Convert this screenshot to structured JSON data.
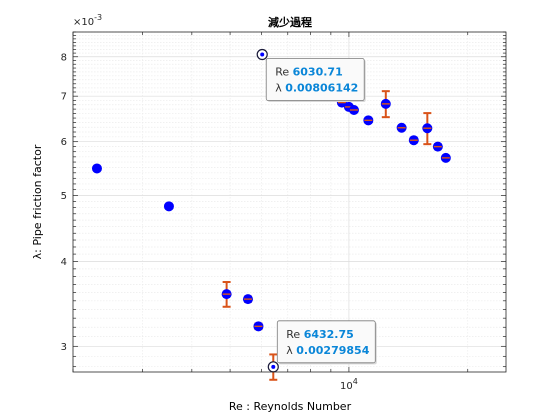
{
  "chart_data": {
    "type": "scatter",
    "title": "減少過程",
    "xlabel": "Re : Reynolds Number",
    "ylabel": "λ: Pipe friction factor",
    "x_scale": "log",
    "y_scale": "log",
    "xlim": [
      2000,
      25000
    ],
    "ylim": [
      0.00275,
      0.0087
    ],
    "y_exponent_label": "×10",
    "y_exponent_power": "-3",
    "x_tick_labels": [
      {
        "value": 10000,
        "base": "10",
        "power": "4"
      }
    ],
    "y_tick_labels": [
      {
        "value": 0.003,
        "label": "3"
      },
      {
        "value": 0.004,
        "label": "4"
      },
      {
        "value": 0.005,
        "label": "5"
      },
      {
        "value": 0.006,
        "label": "6"
      },
      {
        "value": 0.007,
        "label": "7"
      },
      {
        "value": 0.008,
        "label": "8"
      }
    ],
    "grid": true,
    "marker_color": "#0000ff",
    "errorbar_color": "#d95319",
    "series": [
      {
        "points": [
          {
            "x": 2300,
            "y": 0.00548
          },
          {
            "x": 3500,
            "y": 0.00482
          },
          {
            "x": 4900,
            "y": 0.00358,
            "err": 0.00015
          },
          {
            "x": 5550,
            "y": 0.00352,
            "err": 3e-05
          },
          {
            "x": 5900,
            "y": 0.00321,
            "err": 3e-05
          },
          {
            "x": 6030.71,
            "y": 0.00806142,
            "err": 3e-05
          },
          {
            "x": 6432.75,
            "y": 0.00279854,
            "err": 0.00012
          },
          {
            "x": 8700,
            "y": 0.00698,
            "err": 3e-05
          },
          {
            "x": 9600,
            "y": 0.00685,
            "err": 3e-05
          },
          {
            "x": 10000,
            "y": 0.00675,
            "err": 3e-05
          },
          {
            "x": 10300,
            "y": 0.00668,
            "err": 3e-05
          },
          {
            "x": 11200,
            "y": 0.00645,
            "err": 3e-05
          },
          {
            "x": 12400,
            "y": 0.00682,
            "err": 0.0003
          },
          {
            "x": 13600,
            "y": 0.00629,
            "err": 3e-05
          },
          {
            "x": 14600,
            "y": 0.00603,
            "err": 3e-05
          },
          {
            "x": 15800,
            "y": 0.00628,
            "err": 0.00033
          },
          {
            "x": 16800,
            "y": 0.0059,
            "err": 3e-05
          },
          {
            "x": 17600,
            "y": 0.00568,
            "err": 3e-05
          }
        ]
      }
    ],
    "datatips": [
      {
        "x": 6030.71,
        "y": 0.00806142,
        "x_label": "Re",
        "y_label": "λ",
        "x_text": "6030.71",
        "y_text": "0.00806142",
        "placement": "lower-right"
      },
      {
        "x": 6432.75,
        "y": 0.00279854,
        "x_label": "Re",
        "y_label": "λ",
        "x_text": "6432.75",
        "y_text": "0.00279854",
        "placement": "upper-right"
      }
    ]
  }
}
